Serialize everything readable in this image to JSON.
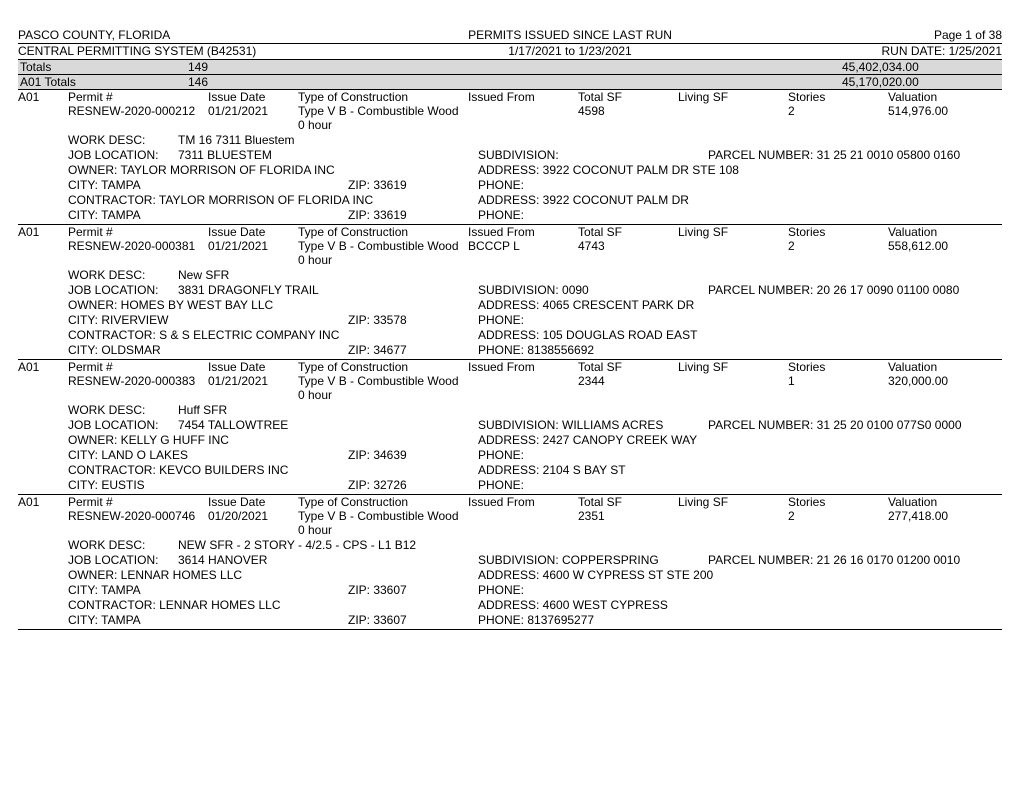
{
  "header": {
    "county": "PASCO COUNTY, FLORIDA",
    "title": "PERMITS ISSUED SINCE LAST RUN",
    "page": "Page 1 of 38",
    "system": "CENTRAL PERMITTING SYSTEM (B42531)",
    "date_range": "1/17/2021 to 1/23/2021",
    "run_date": "RUN DATE: 1/25/2021"
  },
  "totals": {
    "label": "Totals",
    "count": "149",
    "amount": "45,402,034.00"
  },
  "a01_totals": {
    "label": "A01 Totals",
    "count": "146",
    "amount": "45,170,020.00"
  },
  "column_labels": {
    "code": "A01",
    "permit": "Permit #",
    "issue_date": "Issue Date",
    "type": "Type of Construction",
    "issued_from": "Issued From",
    "total_sf": "Total SF",
    "living_sf": "Living SF",
    "stories": "Stories",
    "valuation": "Valuation"
  },
  "field_labels": {
    "work_desc": "WORK DESC:",
    "job_location": "JOB LOCATION:",
    "subdivision": "SUBDIVISION:",
    "parcel_number": "PARCEL NUMBER:",
    "owner": "OWNER:",
    "address": "ADDRESS:",
    "city": "CITY:",
    "zip": "ZIP:",
    "phone": "PHONE:",
    "contractor": "CONTRACTOR:"
  },
  "permits": [
    {
      "code": "A01",
      "permit": "RESNEW-2020-000212",
      "issue_date": "01/21/2021",
      "type": "Type V B - Combustible Wood",
      "hours": "0 hour",
      "issued_from": "",
      "total_sf": "4598",
      "living_sf": "",
      "stories": "2",
      "valuation": "514,976.00",
      "work_desc": "TM 16 7311 Bluestem",
      "job_location": "7311 BLUESTEM",
      "subdivision": "",
      "parcel_number": "31 25 21 0010 05800 0160",
      "owner": "TAYLOR MORRISON OF FLORIDA INC",
      "owner_address": "3922 COCONUT PALM DR STE 108",
      "owner_city": "TAMPA",
      "owner_zip": "33619",
      "owner_phone": "",
      "contractor": "TAYLOR MORRISON OF FLORIDA INC",
      "contractor_address": "3922 COCONUT PALM DR",
      "contractor_city": "TAMPA",
      "contractor_zip": "33619",
      "contractor_phone": ""
    },
    {
      "code": "A01",
      "permit": "RESNEW-2020-000381",
      "issue_date": "01/21/2021",
      "type": "Type V B - Combustible Wood",
      "hours": "0 hour",
      "issued_from": "BCCCP  L",
      "total_sf": "4743",
      "living_sf": "",
      "stories": "2",
      "valuation": "558,612.00",
      "work_desc": "New SFR",
      "job_location": "3831 DRAGONFLY TRAIL",
      "subdivision": "0090",
      "parcel_number": "20 26 17 0090 01100 0080",
      "owner": "HOMES BY WEST BAY LLC",
      "owner_address": "4065 CRESCENT PARK DR",
      "owner_city": "RIVERVIEW",
      "owner_zip": "33578",
      "owner_phone": "",
      "contractor": "S & S ELECTRIC COMPANY INC",
      "contractor_address": "105 DOUGLAS ROAD EAST",
      "contractor_city": "OLDSMAR",
      "contractor_zip": "34677",
      "contractor_phone": "8138556692"
    },
    {
      "code": "A01",
      "permit": "RESNEW-2020-000383",
      "issue_date": "01/21/2021",
      "type": "Type V B - Combustible Wood",
      "hours": "0 hour",
      "issued_from": "",
      "total_sf": "2344",
      "living_sf": "",
      "stories": "1",
      "valuation": "320,000.00",
      "work_desc": "Huff SFR",
      "job_location": "7454 TALLOWTREE",
      "subdivision": "WILLIAMS ACRES",
      "parcel_number": "31 25 20 0100 077S0 0000",
      "owner": "KELLY G HUFF INC",
      "owner_address": "2427 CANOPY CREEK WAY",
      "owner_city": "LAND O LAKES",
      "owner_zip": "34639",
      "owner_phone": "",
      "contractor": "KEVCO BUILDERS INC",
      "contractor_address": "2104 S BAY ST",
      "contractor_city": "EUSTIS",
      "contractor_zip": "32726",
      "contractor_phone": ""
    },
    {
      "code": "A01",
      "permit": "RESNEW-2020-000746",
      "issue_date": "01/20/2021",
      "type": "Type V B - Combustible Wood",
      "hours": "0 hour",
      "issued_from": "",
      "total_sf": "2351",
      "living_sf": "",
      "stories": "2",
      "valuation": "277,418.00",
      "work_desc": "NEW SFR - 2 STORY - 4/2.5 - CPS - L1 B12",
      "job_location": "3614 HANOVER",
      "subdivision": "COPPERSPRING",
      "parcel_number": "21 26 16 0170 01200 0010",
      "owner": "LENNAR HOMES LLC",
      "owner_address": "4600 W CYPRESS ST STE 200",
      "owner_city": "TAMPA",
      "owner_zip": "33607",
      "owner_phone": "",
      "contractor": "LENNAR HOMES LLC",
      "contractor_address": "4600 WEST CYPRESS",
      "contractor_city": "TAMPA",
      "contractor_zip": "33607",
      "contractor_phone": "8137695277"
    }
  ]
}
